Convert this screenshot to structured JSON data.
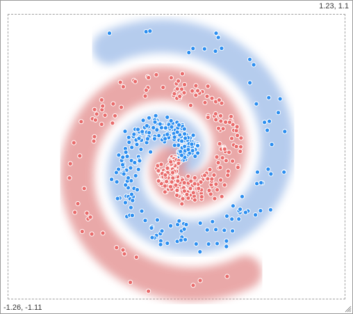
{
  "canvas": {
    "top_right_label": "1.23, 1.1",
    "bottom_left_label": "-1.26, -1.11"
  },
  "colors": {
    "class_a_point": "#2b8ef0",
    "class_a_region": "#9dbbe8",
    "class_b_point": "#e96b6b",
    "class_b_region": "#e28b8b"
  },
  "icons": {
    "resize": "resize-grip-icon"
  }
}
